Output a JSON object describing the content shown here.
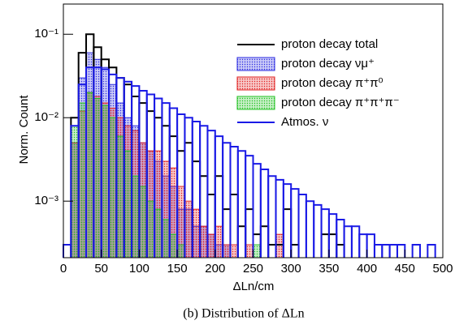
{
  "chart_data": {
    "type": "histogram",
    "caption": "(b) Distribution of ΔLn",
    "xlabel": "ΔLn/cm",
    "ylabel": "Norm. Count",
    "bins": [
      0,
      10,
      20,
      30,
      40,
      50,
      60,
      70,
      80,
      90,
      100,
      110,
      120,
      130,
      140,
      150,
      160,
      170,
      180,
      190,
      200,
      210,
      220,
      230,
      240,
      250,
      260,
      270,
      280,
      290,
      300,
      310,
      320,
      330,
      340,
      350,
      360,
      370,
      380,
      390,
      400,
      410,
      420,
      430,
      440,
      450,
      460,
      470,
      480,
      490,
      500
    ],
    "xlim": [
      0,
      500
    ],
    "xticks": [
      0,
      50,
      100,
      150,
      200,
      250,
      300,
      350,
      400,
      450,
      500
    ],
    "ylim": [
      0.00021,
      0.23
    ],
    "log_y": true,
    "yticks": [
      {
        "value": 0.001,
        "label": "10⁻³"
      },
      {
        "value": 0.01,
        "label": "10⁻²"
      },
      {
        "value": 0.1,
        "label": "10⁻¹"
      }
    ],
    "legend": "upper right",
    "series": [
      {
        "name": "proton decay νμ⁺",
        "color": "#2a2ae0",
        "filled": true,
        "values": [
          null,
          0.005,
          0.03,
          0.06,
          0.05,
          0.04,
          0.025,
          0.015,
          0.01,
          0.008,
          0.005,
          0.004,
          0.003,
          0.002,
          0.0015,
          0.0008,
          0.0008,
          0.0005,
          0.0005,
          0.0004,
          0.0003,
          0.0003,
          null,
          null,
          null,
          null,
          null,
          null,
          null,
          null,
          null,
          null,
          null,
          null,
          null,
          null,
          null,
          null,
          null,
          null,
          null,
          null,
          null,
          null,
          null,
          null,
          null,
          null,
          null,
          null
        ]
      },
      {
        "name": "proton decay π⁺π⁰",
        "color": "#e02020",
        "filled": true,
        "values": [
          null,
          0.005,
          0.012,
          0.02,
          0.018,
          0.015,
          0.013,
          0.01,
          0.008,
          0.007,
          0.005,
          0.004,
          0.004,
          0.003,
          0.0025,
          0.0015,
          0.001,
          0.0008,
          0.0005,
          0.0004,
          0.0005,
          0.0003,
          0.0003,
          null,
          0.0003,
          null,
          null,
          null,
          0.0004,
          null,
          null,
          null,
          null,
          null,
          null,
          null,
          null,
          null,
          null,
          null,
          null,
          null,
          null,
          null,
          null,
          null,
          null,
          null,
          null,
          null
        ]
      },
      {
        "name": "proton decay π⁺π⁺π⁻",
        "color": "#20c020",
        "filled": true,
        "values": [
          null,
          0.008,
          0.015,
          0.02,
          0.017,
          0.014,
          0.01,
          0.006,
          0.004,
          0.002,
          0.0015,
          0.001,
          0.0008,
          0.0006,
          0.0004,
          0.0003,
          null,
          null,
          null,
          null,
          null,
          null,
          null,
          null,
          null,
          0.0003,
          null,
          null,
          null,
          null,
          null,
          null,
          null,
          null,
          null,
          null,
          null,
          null,
          null,
          null,
          null,
          null,
          null,
          null,
          null,
          null,
          null,
          null,
          null,
          null
        ]
      },
      {
        "name": "proton decay total",
        "color": "#000000",
        "filled": false,
        "values": [
          0.0003,
          0.01,
          0.06,
          0.1,
          0.07,
          0.05,
          0.04,
          0.03,
          0.025,
          0.018,
          0.015,
          0.012,
          0.01,
          0.008,
          0.006,
          0.004,
          0.005,
          0.003,
          0.002,
          0.0012,
          0.002,
          0.0008,
          0.0012,
          0.0005,
          0.0008,
          0.0004,
          0.0005,
          0.0003,
          0.0003,
          0.0008,
          0.0003,
          null,
          null,
          null,
          0.0004,
          0.0004,
          0.0003,
          null,
          null,
          null,
          null,
          null,
          null,
          null,
          null,
          null,
          null,
          null,
          null,
          null
        ]
      },
      {
        "name": "Atmos. ν",
        "color": "#1a1ae6",
        "filled": false,
        "values": [
          0.0003,
          0.008,
          0.025,
          0.04,
          0.04,
          0.038,
          0.033,
          0.03,
          0.027,
          0.024,
          0.021,
          0.019,
          0.017,
          0.015,
          0.013,
          0.011,
          0.01,
          0.009,
          0.008,
          0.007,
          0.006,
          0.005,
          0.0045,
          0.004,
          0.0035,
          0.0028,
          0.0024,
          0.002,
          0.0018,
          0.0016,
          0.0014,
          0.0012,
          0.001,
          0.0009,
          0.0008,
          0.0007,
          0.0006,
          0.0005,
          0.0005,
          0.0004,
          0.0004,
          0.0003,
          0.0003,
          0.0003,
          0.0003,
          null,
          0.0003,
          null,
          0.0003,
          null
        ]
      }
    ]
  }
}
